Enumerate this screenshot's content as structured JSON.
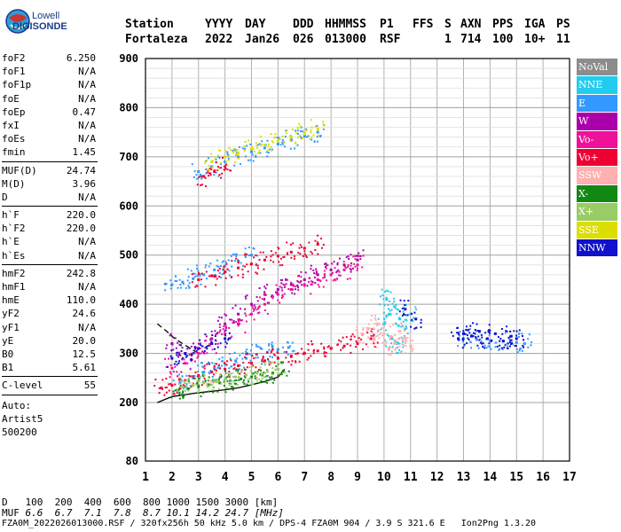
{
  "logo": {
    "line1": "Lowell",
    "line2": "DIGISONDE"
  },
  "header": {
    "cols": [
      "Station",
      "YYYY",
      "DAY",
      "DDD",
      "HHMMSS",
      "P1",
      "FFS",
      "S",
      "AXN",
      "PPS",
      "IGA",
      "PS"
    ],
    "values": [
      "Fortaleza",
      "2022",
      "Jan26",
      "026",
      "013000",
      "RSF",
      "",
      "1",
      "714",
      "100",
      "10+",
      "11"
    ]
  },
  "params_group1": [
    {
      "label": "foF2",
      "value": "6.250"
    },
    {
      "label": "foF1",
      "value": "N/A"
    },
    {
      "label": "foF1p",
      "value": "N/A"
    },
    {
      "label": "foE",
      "value": "N/A"
    },
    {
      "label": "foEp",
      "value": "0.47"
    },
    {
      "label": "fxI",
      "value": "N/A"
    },
    {
      "label": "foEs",
      "value": "N/A"
    },
    {
      "label": "fmin",
      "value": "1.45"
    }
  ],
  "params_group2": [
    {
      "label": "MUF(D)",
      "value": "24.74"
    },
    {
      "label": "M(D)",
      "value": "3.96"
    },
    {
      "label": "D",
      "value": "N/A"
    }
  ],
  "params_group3": [
    {
      "label": "h`F",
      "value": "220.0"
    },
    {
      "label": "h`F2",
      "value": "220.0"
    },
    {
      "label": "h`E",
      "value": "N/A"
    },
    {
      "label": "h`Es",
      "value": "N/A"
    }
  ],
  "params_group4": [
    {
      "label": "hmF2",
      "value": "242.8"
    },
    {
      "label": "hmF1",
      "value": "N/A"
    },
    {
      "label": "hmE",
      "value": "110.0"
    },
    {
      "label": "yF2",
      "value": "24.6"
    },
    {
      "label": "yF1",
      "value": "N/A"
    },
    {
      "label": "yE",
      "value": "20.0"
    },
    {
      "label": "B0",
      "value": "12.5"
    },
    {
      "label": "B1",
      "value": "5.61"
    }
  ],
  "params_group5": [
    {
      "label": "C-level",
      "value": "55"
    }
  ],
  "auto_text": [
    "Auto:",
    "Artist5",
    "500200"
  ],
  "legend": [
    {
      "label": "NoVal",
      "color": "#8c8c8c"
    },
    {
      "label": "NNE",
      "color": "#22ccee"
    },
    {
      "label": "E",
      "color": "#3399ff"
    },
    {
      "label": "W",
      "color": "#aa00aa"
    },
    {
      "label": "Vo-",
      "color": "#ee1199"
    },
    {
      "label": "Vo+",
      "color": "#ee0033"
    },
    {
      "label": "SSW",
      "color": "#ffb0b0"
    },
    {
      "label": "X-",
      "color": "#118811"
    },
    {
      "label": "X+",
      "color": "#99cc66"
    },
    {
      "label": "SSE",
      "color": "#dddd00"
    },
    {
      "label": "NNW",
      "color": "#1111cc"
    }
  ],
  "footer": {
    "d_label": "D",
    "d_values": "100  200  400  600  800 1000 1500 3000 [km]",
    "muf_label": "MUF",
    "muf_values": "6.6  6.7  7.1  7.8  8.7 10.1 14.2 24.7 [MHz]",
    "bottom_line": "FZA0M_2022026013000.RSF / 320fx256h 50 kHz 5.0 km / DPS-4 FZA0M 904 / 3.9 S 321.6 E   Ion2Png 1.3.20"
  },
  "chart_data": {
    "type": "scatter",
    "title": "",
    "xlabel": "",
    "ylabel": "",
    "xlim": [
      1,
      17
    ],
    "ylim": [
      80,
      900
    ],
    "x_ticks": [
      1,
      2,
      3,
      4,
      5,
      6,
      7,
      8,
      9,
      10,
      11,
      12,
      13,
      14,
      15,
      16,
      17
    ],
    "y_ticks": [
      80,
      200,
      300,
      400,
      500,
      600,
      700,
      800,
      900
    ],
    "grid": true,
    "legend_position": "right",
    "series": [
      {
        "name": "NNE",
        "x": [
          10.0,
          10.2,
          10.4,
          10.6,
          10.8,
          11.0,
          10.1,
          10.3,
          10.5
        ],
        "y": [
          360,
          380,
          395,
          370,
          350,
          380,
          410,
          330,
          320
        ]
      },
      {
        "name": "E",
        "x": [
          2.3,
          2.8,
          3.2,
          3.6,
          4.0,
          4.4,
          4.8,
          5.2,
          5.6,
          6.0,
          6.4,
          2.0,
          2.4,
          2.8,
          3.2,
          3.6,
          4.0,
          4.5,
          5.0,
          3.0,
          3.5,
          4.0,
          4.5,
          5.0,
          5.5,
          6.0,
          6.5,
          7.0,
          7.5,
          13.0,
          13.5,
          14.0,
          14.5,
          15.0,
          15.3
        ],
        "y": [
          240,
          250,
          262,
          270,
          278,
          285,
          290,
          298,
          302,
          308,
          312,
          440,
          445,
          452,
          460,
          470,
          478,
          488,
          500,
          670,
          680,
          690,
          700,
          710,
          718,
          726,
          734,
          742,
          750,
          330,
          328,
          326,
          325,
          322,
          320
        ]
      },
      {
        "name": "W",
        "x": [
          2.0,
          2.5,
          3.0,
          3.5,
          4.0,
          4.5,
          5.0,
          5.5,
          6.0,
          6.5,
          7.0,
          7.5,
          8.0,
          8.5,
          9.0
        ],
        "y": [
          320,
          300,
          310,
          330,
          360,
          380,
          400,
          420,
          430,
          440,
          450,
          460,
          470,
          480,
          490
        ]
      },
      {
        "name": "Vo-",
        "x": [
          2.0,
          2.5,
          3.0,
          3.5,
          4.0,
          4.5,
          5.0,
          5.5,
          6.0,
          6.5,
          7.0,
          7.5,
          8.0,
          8.5,
          9.0
        ],
        "y": [
          270,
          280,
          300,
          320,
          340,
          360,
          380,
          400,
          420,
          430,
          440,
          450,
          460,
          470,
          480
        ]
      },
      {
        "name": "Vo+",
        "x": [
          1.6,
          2.0,
          2.5,
          3.0,
          3.5,
          4.0,
          4.5,
          5.0,
          5.5,
          6.0,
          6.5,
          7.0,
          7.5,
          8.0,
          8.5,
          9.0,
          9.5,
          3.0,
          3.5,
          4.0,
          4.5,
          5.0,
          5.5,
          6.0,
          6.5,
          7.0,
          7.5,
          3.2,
          3.6,
          4.0
        ],
        "y": [
          230,
          235,
          245,
          255,
          262,
          268,
          275,
          280,
          285,
          290,
          295,
          300,
          305,
          310,
          315,
          320,
          330,
          450,
          458,
          466,
          474,
          482,
          490,
          498,
          506,
          514,
          522,
          660,
          670,
          680
        ]
      },
      {
        "name": "SSW",
        "x": [
          9.2,
          9.4,
          9.6,
          9.8,
          10.0,
          10.2,
          10.4,
          10.6,
          10.8,
          11.0
        ],
        "y": [
          340,
          350,
          330,
          360,
          340,
          310,
          320,
          345,
          330,
          315
        ]
      },
      {
        "name": "X-",
        "x": [
          2.2,
          2.6,
          3.0,
          3.4,
          3.8,
          4.2,
          4.6,
          5.0,
          5.4,
          5.8,
          6.2
        ],
        "y": [
          225,
          228,
          232,
          236,
          240,
          244,
          248,
          252,
          256,
          260,
          264
        ]
      },
      {
        "name": "X+",
        "x": [
          2.4,
          2.8,
          3.2,
          3.6,
          4.0,
          4.4,
          4.8,
          5.2,
          5.6,
          6.0
        ],
        "y": [
          232,
          235,
          240,
          244,
          248,
          252,
          256,
          260,
          264,
          268
        ]
      },
      {
        "name": "SSE",
        "x": [
          3.5,
          4.0,
          4.5,
          5.0,
          5.5,
          6.0,
          6.5,
          7.0,
          7.5
        ],
        "y": [
          690,
          700,
          708,
          716,
          724,
          732,
          740,
          748,
          756
        ]
      },
      {
        "name": "NNW",
        "x": [
          2.0,
          2.5,
          3.0,
          3.5,
          4.0,
          12.8,
          13.0,
          13.3,
          13.6,
          13.9,
          14.2,
          14.5,
          14.8,
          15.0,
          10.8,
          11.2
        ],
        "y": [
          290,
          300,
          310,
          320,
          330,
          330,
          340,
          335,
          345,
          330,
          340,
          325,
          335,
          330,
          390,
          370
        ]
      }
    ],
    "curves": [
      {
        "name": "profile",
        "x": [
          1.45,
          2.0,
          2.5,
          3.0,
          3.5,
          4.0,
          4.5,
          5.0,
          5.5,
          6.0,
          6.25
        ],
        "y": [
          200,
          212,
          216,
          220,
          223,
          226,
          230,
          236,
          243,
          252,
          268
        ]
      },
      {
        "name": "profile-dashed",
        "x": [
          1.45,
          1.8,
          2.1,
          2.4,
          2.7,
          3.0
        ],
        "y": [
          360,
          345,
          330,
          320,
          310,
          300
        ]
      }
    ]
  }
}
